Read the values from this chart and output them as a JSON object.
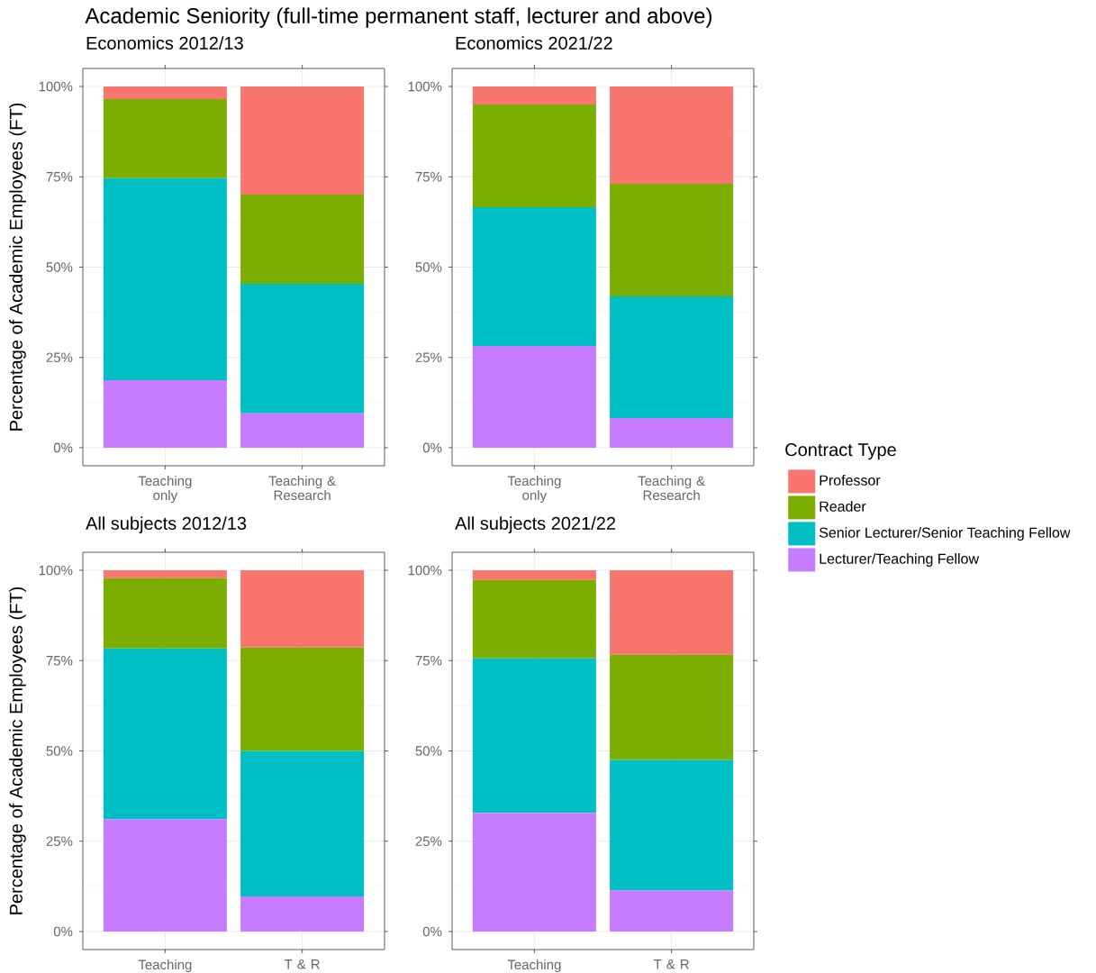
{
  "chart_data": [
    {
      "type": "bar",
      "stacked": true,
      "title": "Academic Seniority (full-time permanent staff, lecturer and above)",
      "subtitle": "Economics 2012/13",
      "ylabel": "Percentage of Academic Employees (FT)",
      "categories": [
        "Teaching only",
        "Teaching & Research"
      ],
      "ylim": [
        -5,
        105
      ],
      "yticks": [
        {
          "value": 0,
          "label": "0%"
        },
        {
          "value": 25,
          "label": "25%"
        },
        {
          "value": 50,
          "label": "50%"
        },
        {
          "value": 75,
          "label": "75%"
        },
        {
          "value": 100,
          "label": "100%"
        }
      ],
      "grid": true,
      "series": [
        {
          "color": "#c77cff",
          "values": [
            18.7,
            9.5
          ]
        },
        {
          "color": "#00bfc4",
          "values": [
            55.9,
            35.9
          ]
        },
        {
          "color": "#7cae00",
          "values": [
            21.9,
            24.7
          ]
        },
        {
          "color": "#f8766d",
          "values": [
            3.5,
            29.9
          ]
        }
      ]
    },
    {
      "type": "bar",
      "stacked": true,
      "title": "Economics 2021/22",
      "categories": [
        "Teaching only",
        "Teaching & Research"
      ],
      "ylim": [
        -5,
        105
      ],
      "yticks": [
        {
          "value": 0,
          "label": "0%"
        },
        {
          "value": 25,
          "label": "25%"
        },
        {
          "value": 50,
          "label": "50%"
        },
        {
          "value": 75,
          "label": "75%"
        },
        {
          "value": 100,
          "label": "100%"
        }
      ],
      "grid": true,
      "legend": "right",
      "legend_title": "Contract Type",
      "series": [
        {
          "name": "Lecturer/Teaching Fellow",
          "color": "#c77cff",
          "values": [
            28.2,
            8.2
          ]
        },
        {
          "name": "Senior Lecturer/Senior Teaching Fellow",
          "color": "#00bfc4",
          "values": [
            38.4,
            33.7
          ]
        },
        {
          "name": "Reader",
          "color": "#7cae00",
          "values": [
            28.4,
            31.2
          ]
        },
        {
          "name": "Professor",
          "color": "#f8766d",
          "values": [
            5.0,
            26.9
          ]
        }
      ]
    },
    {
      "type": "bar",
      "stacked": true,
      "title": "All subjects 2012/13",
      "ylabel": "Percentage of Academic Employees (FT)",
      "categories": [
        "Teaching",
        "T & R"
      ],
      "ylim": [
        -5,
        105
      ],
      "yticks": [
        {
          "value": 0,
          "label": "0%"
        },
        {
          "value": 25,
          "label": "25%"
        },
        {
          "value": 50,
          "label": "50%"
        },
        {
          "value": 75,
          "label": "75%"
        },
        {
          "value": 100,
          "label": "100%"
        }
      ],
      "grid": true,
      "series": [
        {
          "color": "#c77cff",
          "values": [
            31.1,
            9.7
          ]
        },
        {
          "color": "#00bfc4",
          "values": [
            47.3,
            40.3
          ]
        },
        {
          "color": "#7cae00",
          "values": [
            19.4,
            28.6
          ]
        },
        {
          "color": "#f8766d",
          "values": [
            2.2,
            21.4
          ]
        }
      ]
    },
    {
      "type": "bar",
      "stacked": true,
      "title": "All subjects 2021/22",
      "categories": [
        "Teaching",
        "T & R"
      ],
      "ylim": [
        -5,
        105
      ],
      "yticks": [
        {
          "value": 0,
          "label": "0%"
        },
        {
          "value": 25,
          "label": "25%"
        },
        {
          "value": 50,
          "label": "50%"
        },
        {
          "value": 75,
          "label": "75%"
        },
        {
          "value": 100,
          "label": "100%"
        }
      ],
      "grid": true,
      "series": [
        {
          "color": "#c77cff",
          "values": [
            32.8,
            11.4
          ]
        },
        {
          "color": "#00bfc4",
          "values": [
            42.8,
            36.1
          ]
        },
        {
          "color": "#7cae00",
          "values": [
            21.7,
            29.1
          ]
        },
        {
          "color": "#f8766d",
          "values": [
            2.7,
            23.4
          ]
        }
      ]
    }
  ]
}
